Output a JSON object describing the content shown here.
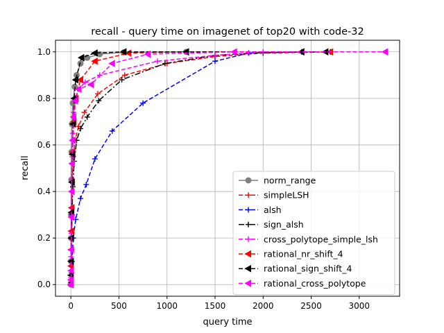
{
  "chart_data": {
    "type": "line",
    "title": "recall - query time on imagenet of top20 with code-32",
    "xlabel": "query time",
    "ylabel": "recall",
    "xlim": [
      -160,
      3420
    ],
    "ylim": [
      -0.05,
      1.05
    ],
    "xticks": [
      0,
      500,
      1000,
      1500,
      2000,
      2500,
      3000
    ],
    "yticks": [
      0.0,
      0.2,
      0.4,
      0.6,
      0.8,
      1.0
    ],
    "xtick_labels": [
      "0",
      "500",
      "1000",
      "1500",
      "2000",
      "2500",
      "3000"
    ],
    "ytick_labels": [
      "0.0",
      "0.2",
      "0.4",
      "0.6",
      "0.8",
      "1.0"
    ],
    "grid": true,
    "legend_position": "lower-right",
    "series": [
      {
        "name": "norm_range",
        "color": "#808080",
        "dash": "",
        "marker": "circle",
        "x": [
          0,
          1,
          2,
          3,
          5,
          8,
          12,
          20,
          40,
          60,
          100,
          170,
          300,
          550,
          1200
        ],
        "y": [
          0.0,
          0.1,
          0.2,
          0.3,
          0.45,
          0.57,
          0.69,
          0.78,
          0.85,
          0.9,
          0.95,
          0.975,
          0.99,
          0.998,
          1.0
        ]
      },
      {
        "name": "simpleLSH",
        "color": "#ff0000",
        "dash": "6,3",
        "marker": "plus",
        "x": [
          1,
          3,
          6,
          10,
          15,
          25,
          45,
          80,
          140,
          280,
          560,
          1000,
          1500,
          2000,
          2700
        ],
        "y": [
          0.02,
          0.1,
          0.22,
          0.33,
          0.44,
          0.55,
          0.62,
          0.68,
          0.74,
          0.82,
          0.9,
          0.95,
          0.98,
          0.995,
          1.0
        ]
      },
      {
        "name": "alsh",
        "color": "#0000ff",
        "dash": "6,3",
        "marker": "plus",
        "x": [
          2,
          6,
          12,
          25,
          50,
          100,
          160,
          250,
          430,
          750,
          1500,
          1850,
          2400
        ],
        "y": [
          0.02,
          0.05,
          0.1,
          0.2,
          0.28,
          0.37,
          0.43,
          0.54,
          0.66,
          0.78,
          0.96,
          0.995,
          1.0
        ]
      },
      {
        "name": "sign_alsh",
        "color": "#000000",
        "dash": "8,3,2,3",
        "marker": "plus",
        "x": [
          1,
          3,
          6,
          12,
          20,
          35,
          60,
          100,
          170,
          290,
          530,
          980,
          1500,
          2000,
          2700
        ],
        "y": [
          0.01,
          0.06,
          0.15,
          0.3,
          0.42,
          0.53,
          0.62,
          0.67,
          0.72,
          0.79,
          0.88,
          0.95,
          0.985,
          0.997,
          1.0
        ]
      },
      {
        "name": "cross_polytope_simple_lsh",
        "color": "#ff00ff",
        "dash": "6,3",
        "marker": "plus",
        "x": [
          1,
          2,
          4,
          6,
          9,
          14,
          20,
          30,
          45,
          80,
          150,
          300,
          900,
          1500,
          2000
        ],
        "y": [
          0.03,
          0.12,
          0.22,
          0.33,
          0.45,
          0.55,
          0.65,
          0.74,
          0.8,
          0.84,
          0.87,
          0.9,
          0.96,
          0.985,
          1.0
        ]
      },
      {
        "name": "rational_nr_shift_4",
        "color": "#ff0000",
        "dash": "6,3",
        "marker": "triangle-left",
        "x": [
          0,
          1,
          2,
          3,
          5,
          8,
          12,
          18,
          30,
          50,
          100,
          250,
          600,
          1200,
          2400,
          2700
        ],
        "y": [
          0.0,
          0.02,
          0.08,
          0.15,
          0.23,
          0.33,
          0.44,
          0.57,
          0.7,
          0.8,
          0.88,
          0.96,
          0.995,
          1.0,
          1.0,
          1.0
        ]
      },
      {
        "name": "rational_sign_shift_4",
        "color": "#000000",
        "dash": "6,3",
        "marker": "triangle-left",
        "x": [
          0,
          1,
          2,
          4,
          6,
          10,
          15,
          22,
          35,
          50,
          110,
          250,
          550,
          1200,
          2400,
          2650
        ],
        "y": [
          0.0,
          0.04,
          0.1,
          0.2,
          0.31,
          0.44,
          0.56,
          0.69,
          0.8,
          0.88,
          0.975,
          0.995,
          1.0,
          1.0,
          1.0,
          1.0
        ]
      },
      {
        "name": "rational_cross_polytope",
        "color": "#ff00ff",
        "dash": "6,3",
        "marker": "triangle-left",
        "x": [
          0,
          1,
          2,
          3,
          5,
          8,
          12,
          18,
          28,
          45,
          80,
          210,
          430,
          800,
          1700,
          3270
        ],
        "y": [
          0.0,
          0.02,
          0.06,
          0.15,
          0.29,
          0.4,
          0.52,
          0.62,
          0.72,
          0.79,
          0.84,
          0.86,
          0.95,
          0.99,
          1.0,
          1.0
        ]
      }
    ]
  }
}
